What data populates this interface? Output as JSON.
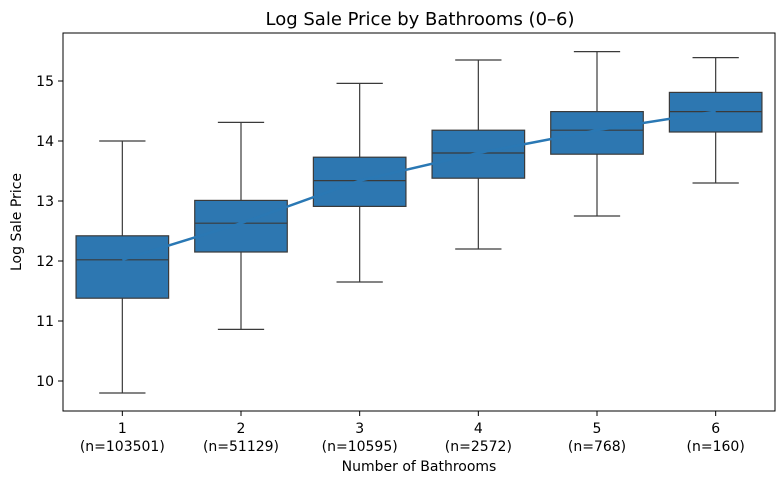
{
  "chart_data": {
    "type": "box",
    "title": "Log Sale Price by Bathrooms (0–6)",
    "xlabel": "Number of Bathrooms",
    "ylabel": "Log Sale Price",
    "ylim": [
      9.5,
      15.8
    ],
    "yticks": [
      10,
      11,
      12,
      13,
      14,
      15
    ],
    "categories": [
      "1",
      "2",
      "3",
      "4",
      "5",
      "6"
    ],
    "counts": [
      "(n=103501)",
      "(n=51129)",
      "(n=10595)",
      "(n=2572)",
      "(n=768)",
      "(n=160)"
    ],
    "boxes": [
      {
        "label": "1",
        "whisker_low": 9.8,
        "q1": 11.38,
        "median": 12.02,
        "q3": 12.42,
        "whisker_high": 14.0
      },
      {
        "label": "2",
        "whisker_low": 10.86,
        "q1": 12.15,
        "median": 12.63,
        "q3": 13.01,
        "whisker_high": 14.31
      },
      {
        "label": "3",
        "whisker_low": 11.65,
        "q1": 12.91,
        "median": 13.34,
        "q3": 13.73,
        "whisker_high": 14.96
      },
      {
        "label": "4",
        "whisker_low": 12.2,
        "q1": 13.38,
        "median": 13.8,
        "q3": 14.18,
        "whisker_high": 15.35
      },
      {
        "label": "5",
        "whisker_low": 12.75,
        "q1": 13.78,
        "median": 14.18,
        "q3": 14.49,
        "whisker_high": 15.49
      },
      {
        "label": "6",
        "whisker_low": 13.3,
        "q1": 14.15,
        "median": 14.49,
        "q3": 14.81,
        "whisker_high": 15.39
      }
    ],
    "trend_line": {
      "x": [
        "1",
        "2",
        "3",
        "4",
        "5",
        "6"
      ],
      "y": [
        12.02,
        12.63,
        13.34,
        13.8,
        14.18,
        14.49
      ]
    },
    "colors": {
      "box": "#2d77b1",
      "trend": "#2a78b4",
      "edge": "#3a3a3a"
    },
    "grid": false,
    "legend": "none"
  }
}
